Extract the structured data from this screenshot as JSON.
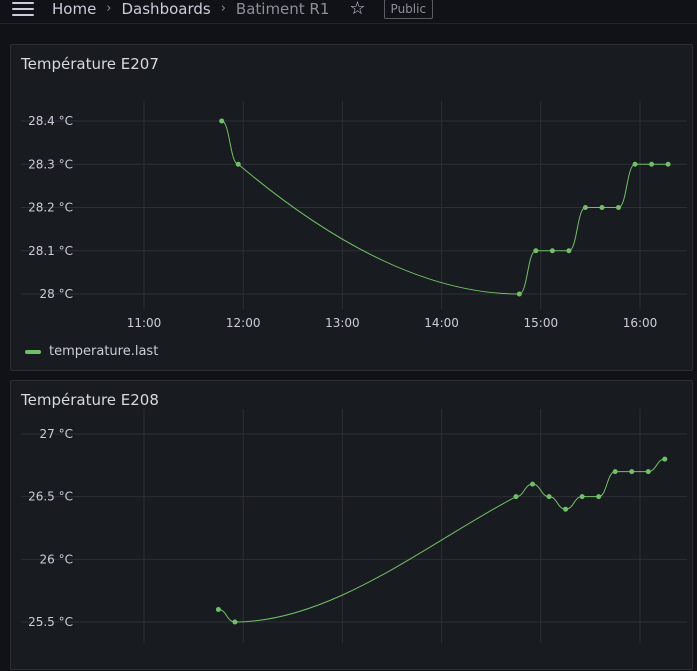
{
  "header": {
    "breadcrumbs": [
      "Home",
      "Dashboards",
      "Batiment R1"
    ],
    "public_badge": "Public"
  },
  "colors": {
    "series": "#73bf69",
    "grid": "#2c2f35",
    "axis_text": "#ccccdc"
  },
  "panels": [
    {
      "title": "Température E207",
      "legend": "temperature.last",
      "chart_data": {
        "type": "line",
        "xlabel": "",
        "ylabel": "",
        "x_ticks": [
          "11:00",
          "12:00",
          "13:00",
          "14:00",
          "15:00",
          "16:00"
        ],
        "y_ticks": [
          "28 °C",
          "28.1 °C",
          "28.2 °C",
          "28.3 °C",
          "28.4 °C"
        ],
        "ylim": [
          28,
          28.4
        ],
        "series": [
          {
            "name": "temperature.last",
            "x": [
              "11:47",
              "11:57",
              "14:47",
              "14:57",
              "15:07",
              "15:17",
              "15:27",
              "15:37",
              "15:47",
              "15:57",
              "16:07",
              "16:17"
            ],
            "values": [
              28.4,
              28.3,
              28.0,
              28.1,
              28.1,
              28.1,
              28.2,
              28.2,
              28.2,
              28.3,
              28.3,
              28.3
            ]
          }
        ]
      }
    },
    {
      "title": "Température E208",
      "chart_data": {
        "type": "line",
        "xlabel": "",
        "ylabel": "",
        "y_ticks": [
          "25.5 °C",
          "26 °C",
          "26.5 °C",
          "27 °C"
        ],
        "ylim": [
          25.5,
          27
        ],
        "series": [
          {
            "x": [
              "11:45",
              "11:55",
              "14:45",
              "14:55",
              "15:05",
              "15:15",
              "15:25",
              "15:35",
              "15:45",
              "15:55",
              "16:05",
              "16:15"
            ],
            "values": [
              25.6,
              25.5,
              26.5,
              26.6,
              26.5,
              26.4,
              26.5,
              26.5,
              26.7,
              26.7,
              26.7,
              26.8
            ]
          }
        ]
      }
    }
  ]
}
